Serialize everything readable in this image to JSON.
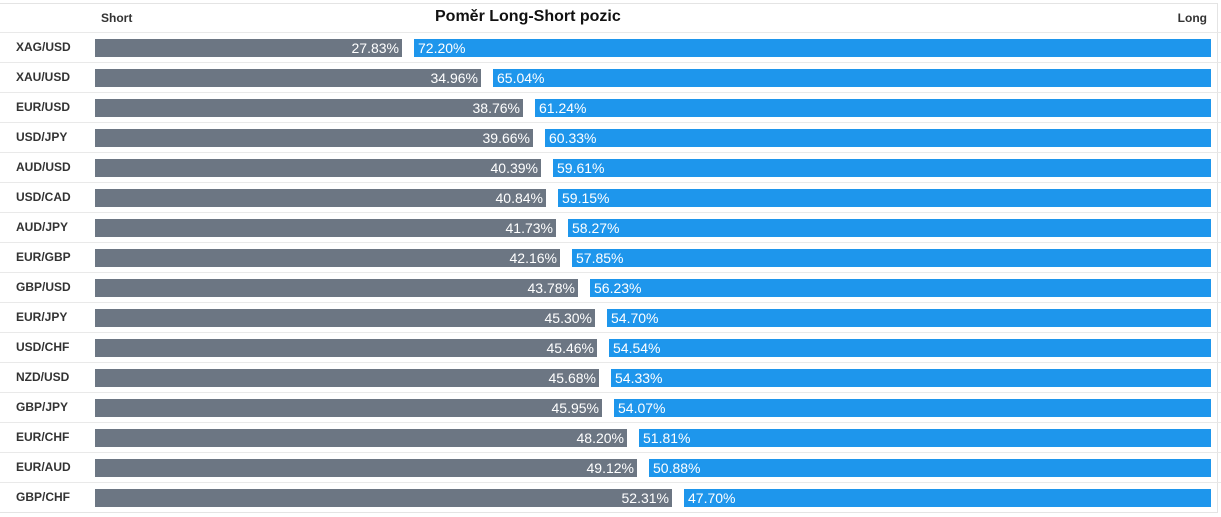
{
  "chart_data": {
    "type": "bar",
    "title": "Poměr Long-Short pozic",
    "short_label": "Short",
    "long_label": "Long",
    "categories": [
      "XAG/USD",
      "XAU/USD",
      "EUR/USD",
      "USD/JPY",
      "AUD/USD",
      "USD/CAD",
      "AUD/JPY",
      "EUR/GBP",
      "GBP/USD",
      "EUR/JPY",
      "USD/CHF",
      "NZD/USD",
      "GBP/JPY",
      "EUR/CHF",
      "EUR/AUD",
      "GBP/CHF"
    ],
    "series": [
      {
        "name": "Short",
        "values": [
          27.83,
          34.96,
          38.76,
          39.66,
          40.39,
          40.84,
          41.73,
          42.16,
          43.78,
          45.3,
          45.46,
          45.68,
          45.95,
          48.2,
          49.12,
          52.31
        ],
        "labels": [
          "27.83%",
          "34.96%",
          "38.76%",
          "39.66%",
          "40.39%",
          "40.84%",
          "41.73%",
          "42.16%",
          "43.78%",
          "45.30%",
          "45.46%",
          "45.68%",
          "45.95%",
          "48.20%",
          "49.12%",
          "52.31%"
        ],
        "color": "#6c7683"
      },
      {
        "name": "Long",
        "values": [
          72.2,
          65.04,
          61.24,
          60.33,
          59.61,
          59.15,
          58.27,
          57.85,
          56.23,
          54.7,
          54.54,
          54.33,
          54.07,
          51.81,
          50.88,
          47.7
        ],
        "labels": [
          "72.20%",
          "65.04%",
          "61.24%",
          "60.33%",
          "59.61%",
          "59.15%",
          "58.27%",
          "57.85%",
          "56.23%",
          "54.70%",
          "54.54%",
          "54.33%",
          "54.07%",
          "51.81%",
          "50.88%",
          "47.70%"
        ],
        "color": "#1e96ec"
      }
    ],
    "stacked": true,
    "orientation": "horizontal",
    "xlim": [
      0,
      100
    ],
    "grid": false
  }
}
